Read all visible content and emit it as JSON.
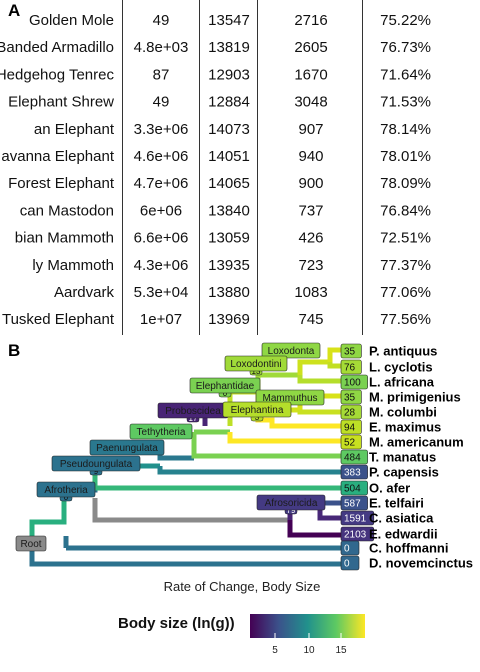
{
  "panel_a": {
    "label": "A",
    "rows": [
      [
        "Golden Mole",
        "49",
        "13547",
        "2716",
        "75.22%"
      ],
      [
        "Banded Armadillo",
        "4.8e+03",
        "13819",
        "2605",
        "76.73%"
      ],
      [
        "Hedgehog Tenrec",
        "87",
        "12903",
        "1670",
        "71.64%"
      ],
      [
        "Elephant Shrew",
        "49",
        "12884",
        "3048",
        "71.53%"
      ],
      [
        "an Elephant",
        "3.3e+06",
        "14073",
        "907",
        "78.14%"
      ],
      [
        "avanna Elephant",
        "4.6e+06",
        "14051",
        "940",
        "78.01%"
      ],
      [
        "Forest Elephant",
        "4.7e+06",
        "14065",
        "900",
        "78.09%"
      ],
      [
        "can Mastodon",
        "6e+06",
        "13840",
        "737",
        "76.84%"
      ],
      [
        "bian Mammoth",
        "6.6e+06",
        "13059",
        "426",
        "72.51%"
      ],
      [
        "ly Mammoth",
        "4.3e+06",
        "13935",
        "723",
        "77.37%"
      ],
      [
        "Aardvark",
        "5.3e+04",
        "13880",
        "1083",
        "77.06%"
      ],
      [
        "Tusked Elephant",
        "1e+07",
        "13969",
        "745",
        "77.56%"
      ]
    ]
  },
  "panel_b": {
    "label": "B",
    "xlabel": "Rate of Change, Body Size",
    "tips": [
      {
        "name": "P. antiquus",
        "value": "35"
      },
      {
        "name": "L. cyclotis",
        "value": "76"
      },
      {
        "name": "L. africana",
        "value": "100"
      },
      {
        "name": "M. primigenius",
        "value": "35"
      },
      {
        "name": "M. columbi",
        "value": "28"
      },
      {
        "name": "E. maximus",
        "value": "94"
      },
      {
        "name": "M. americanum",
        "value": "52"
      },
      {
        "name": "T. manatus",
        "value": "484"
      },
      {
        "name": "P. capensis",
        "value": "383"
      },
      {
        "name": "O. afer",
        "value": "504"
      },
      {
        "name": "E. telfairi",
        "value": "587"
      },
      {
        "name": "C. asiatica",
        "value": "1591"
      },
      {
        "name": "E. edwardii",
        "value": "2103"
      },
      {
        "name": "C. hoffmanni",
        "value": "0"
      },
      {
        "name": "D. novemcinctus",
        "value": "0"
      }
    ],
    "clades": [
      {
        "name": "Loxodonta",
        "value": ""
      },
      {
        "name": "Loxodontini",
        "value": "13"
      },
      {
        "name": "Elephantidae",
        "value": "0"
      },
      {
        "name": "Mammuthus",
        "value": ""
      },
      {
        "name": "Proboscidea",
        "value": "17"
      },
      {
        "name": "Elephantina",
        "value": "3"
      },
      {
        "name": "Tethytheria",
        "value": ""
      },
      {
        "name": "Paenungulata",
        "value": ""
      },
      {
        "name": "Pseudoungulata",
        "value": "9"
      },
      {
        "name": "Afrotheria",
        "value": "0"
      },
      {
        "name": "Afrosoricida",
        "value": "79"
      },
      {
        "name": "Root",
        "value": ""
      }
    ],
    "legend": {
      "title": "Body size (ln(g))",
      "ticks": [
        "5",
        "10",
        "15"
      ],
      "colors": [
        "#440154",
        "#3b528b",
        "#21918c",
        "#5ec962",
        "#fde725"
      ]
    }
  }
}
